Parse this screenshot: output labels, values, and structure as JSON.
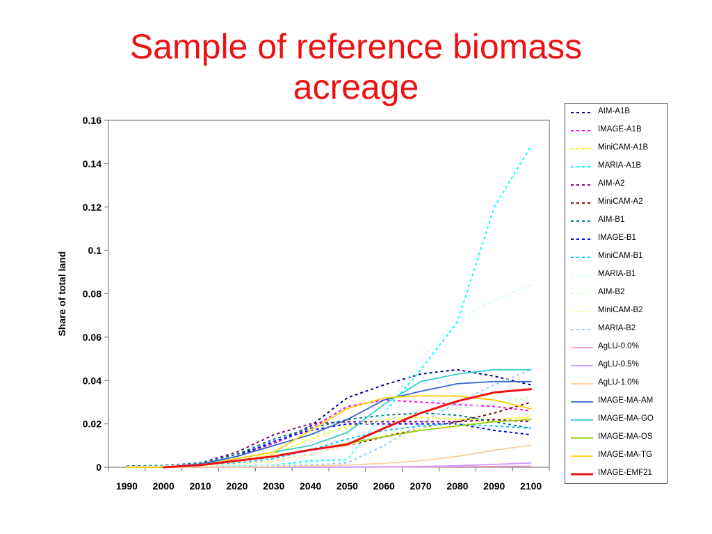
{
  "slide": {
    "title_line1": "Sample of reference biomass",
    "title_line2": "acreage"
  },
  "chart_data": {
    "type": "line",
    "ylabel": "Share of total land",
    "xlabel": "",
    "x": [
      1990,
      2000,
      2010,
      2020,
      2030,
      2040,
      2050,
      2060,
      2070,
      2080,
      2090,
      2100
    ],
    "ylim": [
      0,
      0.16
    ],
    "yticks": [
      0,
      0.02,
      0.04,
      0.06,
      0.08,
      0.1,
      0.12,
      0.14,
      0.16
    ],
    "ytick_labels": [
      "0",
      "0.02",
      "0.04",
      "0.06",
      "0.08",
      "0.1",
      "0.12",
      "0.14",
      "0.16"
    ],
    "grid": false,
    "legend": "right",
    "series": [
      {
        "name": "AIM-A1B",
        "color": "#000080",
        "dash": "dotted",
        "values": [
          0.0005,
          0.0008,
          0.002,
          0.006,
          0.011,
          0.019,
          0.032,
          0.038,
          0.043,
          0.045,
          0.042,
          0.038
        ]
      },
      {
        "name": "IMAGE-A1B",
        "color": "#ff00ff",
        "dash": "dotted",
        "values": [
          0.0002,
          0.0005,
          0.0015,
          0.005,
          0.011,
          0.018,
          0.028,
          0.031,
          0.03,
          0.029,
          0.028,
          0.026
        ]
      },
      {
        "name": "MiniCAM-A1B",
        "color": "#ffff00",
        "dash": "dotted",
        "values": [
          0.0001,
          0.0003,
          0.0008,
          0.003,
          0.006,
          0.013,
          0.019,
          0.022,
          0.023,
          0.022,
          0.022,
          0.023
        ]
      },
      {
        "name": "MARIA-A1B",
        "color": "#00ffff",
        "dash": "dotted",
        "values": [
          0,
          0,
          0,
          0.0005,
          0.001,
          0.003,
          0.0035,
          0.025,
          0.045,
          0.067,
          0.12,
          0.148
        ]
      },
      {
        "name": "AIM-A2",
        "color": "#800080",
        "dash": "dotted",
        "values": [
          0.0005,
          0.0008,
          0.002,
          0.007,
          0.015,
          0.02,
          0.021,
          0.021,
          0.021,
          0.021,
          0.022,
          0.021
        ]
      },
      {
        "name": "MiniCAM-A2",
        "color": "#800000",
        "dash": "dotted",
        "values": [
          0.0001,
          0.0002,
          0.0005,
          0.0015,
          0.003,
          0.006,
          0.01,
          0.014,
          0.018,
          0.021,
          0.025,
          0.03
        ]
      },
      {
        "name": "AIM-B1",
        "color": "#008080",
        "dash": "dotted",
        "values": [
          0.0005,
          0.0008,
          0.002,
          0.006,
          0.013,
          0.018,
          0.022,
          0.024,
          0.025,
          0.024,
          0.021,
          0.018
        ]
      },
      {
        "name": "IMAGE-B1",
        "color": "#0000ff",
        "dash": "dotted",
        "values": [
          0.0002,
          0.0005,
          0.0015,
          0.005,
          0.012,
          0.017,
          0.02,
          0.02,
          0.02,
          0.02,
          0.017,
          0.015
        ]
      },
      {
        "name": "MiniCAM-B1",
        "color": "#00ccff",
        "dash": "dotted",
        "values": [
          0.0001,
          0.0002,
          0.0006,
          0.002,
          0.004,
          0.008,
          0.013,
          0.017,
          0.019,
          0.02,
          0.019,
          0.018
        ]
      },
      {
        "name": "MARIA-B1",
        "color": "#ccffff",
        "dash": "dotted",
        "values": [
          0,
          0,
          0,
          0.0003,
          0.0008,
          0.002,
          0.003,
          0.025,
          0.05,
          0.068,
          0.077,
          0.084
        ]
      },
      {
        "name": "AIM-B2",
        "color": "#ccffcc",
        "dash": "dotted",
        "values": [
          0.0003,
          0.0005,
          0.0015,
          0.005,
          0.01,
          0.015,
          0.018,
          0.022,
          0.025,
          0.027,
          0.03,
          0.032
        ]
      },
      {
        "name": "MiniCAM-B2",
        "color": "#ffff99",
        "dash": "dotted",
        "values": [
          0.0001,
          0.0002,
          0.0005,
          0.0015,
          0.003,
          0.006,
          0.01,
          0.015,
          0.018,
          0.02,
          0.022,
          0.024
        ]
      },
      {
        "name": "MARIA-B2",
        "color": "#99ccff",
        "dash": "dotted",
        "values": [
          0,
          0,
          0,
          0.0002,
          0.0005,
          0.001,
          0.002,
          0.01,
          0.02,
          0.03,
          0.038,
          0.045
        ]
      },
      {
        "name": "AgLU-0.0%",
        "color": "#ff99cc",
        "dash": "solid",
        "values": [
          0,
          0,
          0,
          0,
          0,
          0,
          0,
          0.0001,
          0.0002,
          0.0003,
          0.0004,
          0.0005
        ]
      },
      {
        "name": "AgLU-0.5%",
        "color": "#cc99ff",
        "dash": "solid",
        "values": [
          0,
          0,
          0,
          0,
          0,
          0,
          0.0001,
          0.0002,
          0.0004,
          0.0007,
          0.0013,
          0.002
        ]
      },
      {
        "name": "AgLU-1.0%",
        "color": "#ffcc99",
        "dash": "solid",
        "values": [
          0,
          0,
          0,
          0,
          0.0002,
          0.0005,
          0.001,
          0.0018,
          0.003,
          0.005,
          0.0078,
          0.0102
        ]
      },
      {
        "name": "IMAGE-MA-AM",
        "color": "#3366cc",
        "dash": "solid",
        "values": [
          0,
          0,
          0.0015,
          0.005,
          0.01,
          0.015,
          0.022,
          0.031,
          0.035,
          0.0385,
          0.0395,
          0.0395
        ]
      },
      {
        "name": "IMAGE-MA-GO",
        "color": "#33cccc",
        "dash": "solid",
        "values": [
          0,
          0,
          0.0012,
          0.004,
          0.007,
          0.01,
          0.016,
          0.029,
          0.0395,
          0.043,
          0.045,
          0.045
        ]
      },
      {
        "name": "IMAGE-MA-OS",
        "color": "#99cc00",
        "dash": "solid",
        "values": [
          0,
          0,
          0.001,
          0.003,
          0.005,
          0.008,
          0.011,
          0.014,
          0.017,
          0.019,
          0.021,
          0.022
        ]
      },
      {
        "name": "IMAGE-MA-TG",
        "color": "#ffcc00",
        "dash": "solid",
        "values": [
          0,
          0,
          0.0008,
          0.004,
          0.007,
          0.017,
          0.027,
          0.032,
          0.033,
          0.0328,
          0.031,
          0.027
        ]
      },
      {
        "name": "IMAGE-EMF21",
        "color": "#ee1111",
        "dash": "solid-thick",
        "values": [
          null,
          0,
          0.001,
          0.003,
          0.005,
          0.008,
          0.0105,
          0.018,
          0.025,
          0.0305,
          0.0345,
          0.036
        ]
      }
    ]
  }
}
